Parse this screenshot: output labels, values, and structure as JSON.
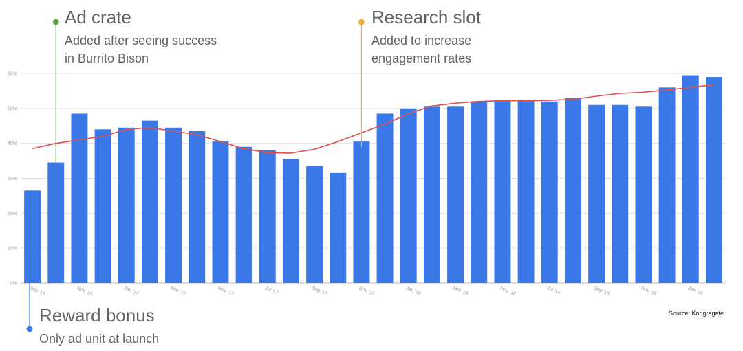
{
  "annotations": [
    {
      "title": "Ad crate",
      "lines": [
        "Added after seeing success",
        "in Burrito Bison"
      ],
      "color": "#5aa845",
      "month_index": 1
    },
    {
      "title": "Research slot",
      "lines": [
        "Added to increase",
        "engagement rates"
      ],
      "color": "#f2b23a",
      "month_index": 14
    },
    {
      "title": "Reward bonus",
      "lines": [
        "Only ad unit at launch"
      ],
      "color": "#3b78e7",
      "month_index": 0
    }
  ],
  "source": "Source: Kongregate",
  "chart_data": {
    "type": "bar",
    "bar_color": "#3b78e7",
    "trend_color": "#d9534f",
    "grid": true,
    "ylim": [
      0,
      60
    ],
    "yticks": [
      "0%",
      "10%",
      "20%",
      "30%",
      "40%",
      "50%",
      "60%"
    ],
    "categories": [
      "Sep '16",
      "Oct '16",
      "Nov '16",
      "Dec '16",
      "Jan '17",
      "Feb '17",
      "Mar '17",
      "Apr '17",
      "May '17",
      "Jun '17",
      "Jul '17",
      "Aug '17",
      "Sep '17",
      "Oct '17",
      "Nov '17",
      "Dec '17",
      "Jan '18",
      "Feb '18",
      "Mar '18",
      "Apr '18",
      "May '18",
      "Jun '18",
      "Jul '18",
      "Aug '18",
      "Sep '18",
      "Oct '18",
      "Nov '18",
      "Dec '18",
      "Jan '19",
      "Feb '19"
    ],
    "xtick_labels": [
      {
        "index": 0,
        "label": "Sep '16"
      },
      {
        "index": 2,
        "label": "Nov '16"
      },
      {
        "index": 4,
        "label": "Jan '17"
      },
      {
        "index": 6,
        "label": "Mar '17"
      },
      {
        "index": 8,
        "label": "May '17"
      },
      {
        "index": 10,
        "label": "Jul '17"
      },
      {
        "index": 12,
        "label": "Sep '17"
      },
      {
        "index": 14,
        "label": "Nov '17"
      },
      {
        "index": 16,
        "label": "Jan '18"
      },
      {
        "index": 18,
        "label": "Mar '18"
      },
      {
        "index": 20,
        "label": "May '18"
      },
      {
        "index": 22,
        "label": "Jul '18"
      },
      {
        "index": 24,
        "label": "Sep '18"
      },
      {
        "index": 26,
        "label": "Nov '18"
      },
      {
        "index": 28,
        "label": "Jan '19"
      }
    ],
    "series": [
      {
        "type": "bar",
        "values": [
          26.5,
          34.5,
          48.5,
          44,
          44.5,
          46.5,
          44.5,
          43.5,
          40.5,
          39,
          38,
          35.5,
          33.5,
          31.5,
          40.5,
          48.5,
          50,
          50.5,
          50.5,
          52,
          52.5,
          52.5,
          52,
          53,
          51,
          51,
          50.5,
          56,
          59.5,
          59
        ]
      },
      {
        "type": "line",
        "values": [
          38.5,
          40,
          41,
          42,
          44,
          44.5,
          43.5,
          42.5,
          40.5,
          38.5,
          37.3,
          37.2,
          38.3,
          40.5,
          43,
          45.5,
          48.5,
          50.7,
          51.5,
          52,
          52.2,
          52.2,
          52.3,
          52.6,
          53.5,
          54.3,
          54.6,
          55.3,
          56,
          56.8
        ]
      }
    ]
  }
}
